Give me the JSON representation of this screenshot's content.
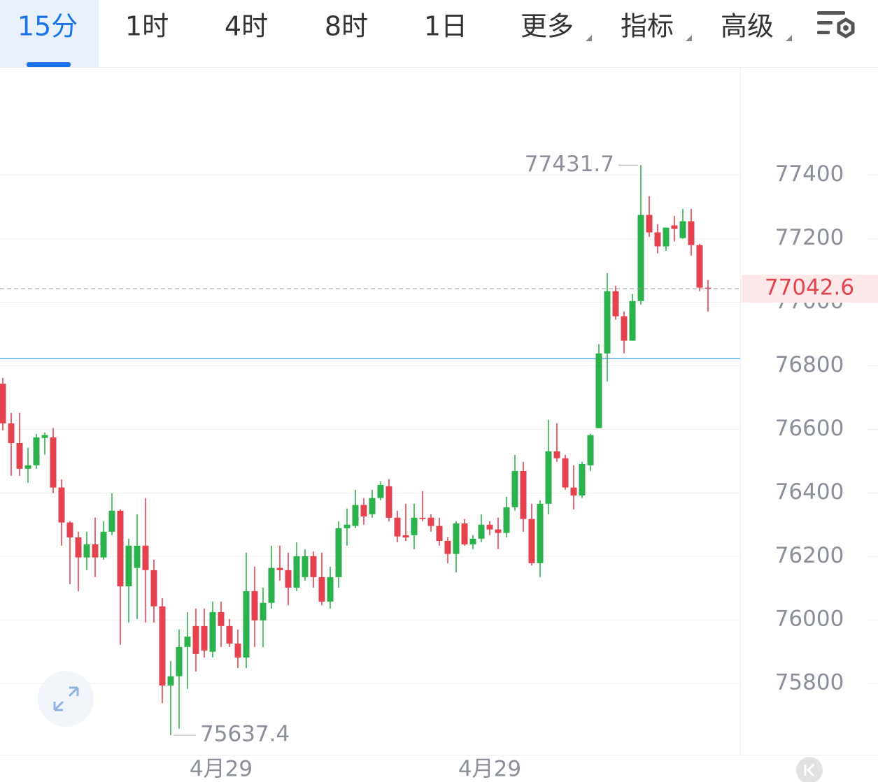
{
  "toolbar": {
    "tabs": [
      "15分",
      "1时",
      "4时",
      "8时",
      "1日",
      "更多",
      "指标",
      "高级"
    ],
    "active": 0
  },
  "chart_data": {
    "type": "candlestick",
    "categories": [
      null,
      null,
      null,
      null,
      null,
      null,
      null,
      null,
      null,
      null,
      null,
      null,
      null,
      null,
      null,
      null,
      null,
      null,
      null,
      null,
      null,
      null,
      null,
      null,
      null,
      null,
      "4月29",
      null,
      null,
      null,
      null,
      null,
      null,
      null,
      null,
      null,
      null,
      null,
      null,
      null,
      null,
      null,
      null,
      null,
      null,
      null,
      null,
      null,
      null,
      null,
      null,
      null,
      null,
      null,
      null,
      null,
      null,
      null,
      "4月29",
      null,
      null,
      null,
      null,
      null,
      null,
      null,
      null,
      null,
      null,
      null,
      null,
      null,
      null,
      null,
      null,
      null,
      null,
      null,
      null,
      null,
      null,
      null,
      null,
      null,
      null
    ],
    "open": [
      76744,
      76619,
      76557,
      76476,
      76487,
      76573,
      76575,
      76417,
      76307,
      76260,
      76197,
      76238,
      76197,
      76278,
      76344,
      76106,
      76164,
      76234,
      76157,
      76043,
      75794,
      75823,
      75915,
      75981,
      75981,
      75900,
      76025,
      75981,
      75926,
      75882,
      76091,
      75999,
      76054,
      76164,
      76157,
      76102,
      76135,
      76201,
      76135,
      76058,
      76135,
      76289,
      76296,
      76362,
      76333,
      76384,
      76421,
      76322,
      76267,
      76267,
      76322,
      76322,
      76296,
      76249,
      76208,
      76304,
      76238,
      76256,
      76300,
      76285,
      76274,
      76355,
      76469,
      76318,
      76179,
      76366,
      76531,
      76509,
      76417,
      76392,
      76487,
      76604,
      76839,
      77035,
      76956,
      76879,
      77004,
      77275,
      77220,
      77176,
      77242,
      77202,
      77255,
      77180,
      77046
    ],
    "high": [
      76762,
      76652,
      76652,
      76542,
      76586,
      76590,
      76604,
      76443,
      76311,
      76278,
      76278,
      76322,
      76311,
      76399,
      76348,
      76256,
      76333,
      76384,
      76190,
      76069,
      75871,
      75970,
      76025,
      76036,
      76036,
      76058,
      76058,
      76003,
      75970,
      76212,
      76168,
      76102,
      76234,
      76234,
      76212,
      76245,
      76223,
      76216,
      76212,
      76168,
      76311,
      76351,
      76410,
      76384,
      76410,
      76436,
      76443,
      76344,
      76366,
      76366,
      76406,
      76333,
      76322,
      76260,
      76311,
      76318,
      76267,
      76333,
      76311,
      76322,
      76388,
      76520,
      76498,
      76366,
      76377,
      76630,
      76619,
      76520,
      76487,
      76498,
      76586,
      76868,
      77092,
      77052,
      76971,
      77026,
      77431.7,
      77334,
      77246,
      77235,
      77272,
      77294,
      77294,
      77184,
      77070
    ],
    "low": [
      76597,
      76454,
      76454,
      76432,
      76476,
      76520,
      76399,
      76234,
      76113,
      76091,
      76157,
      76135,
      76190,
      76267,
      75922,
      75992,
      76003,
      75992,
      75992,
      75739,
      75637.4,
      75658,
      75783,
      75838,
      75882,
      75882,
      75915,
      75915,
      75849,
      75849,
      75915,
      75915,
      76036,
      76124,
      76047,
      76091,
      76124,
      76102,
      76047,
      76036,
      76102,
      76234,
      76289,
      76300,
      76322,
      76377,
      76311,
      76245,
      76249,
      76223,
      76311,
      76278,
      76234,
      76179,
      76150,
      76234,
      76223,
      76245,
      76267,
      76223,
      76260,
      76344,
      76278,
      76172,
      76135,
      76333,
      76498,
      76410,
      76348,
      76384,
      76469,
      76604,
      76751,
      76945,
      76839,
      76879,
      76993,
      77206,
      77154,
      77162,
      77191,
      77200,
      77147,
      77035,
      76971
    ],
    "close": [
      76619,
      76557,
      76476,
      76487,
      76575,
      76582,
      76417,
      76307,
      76260,
      76197,
      76238,
      76197,
      76278,
      76344,
      76106,
      76234,
      76234,
      76157,
      76043,
      75794,
      75823,
      75915,
      75948,
      75893,
      75904,
      76025,
      75981,
      75926,
      75882,
      76091,
      75999,
      76054,
      76164,
      76157,
      76102,
      76201,
      76201,
      76135,
      76058,
      76135,
      76289,
      76300,
      76362,
      76326,
      76384,
      76425,
      76322,
      76263,
      76260,
      76322,
      76318,
      76296,
      76249,
      76208,
      76304,
      76238,
      76256,
      76300,
      76285,
      76274,
      76355,
      76469,
      76318,
      76179,
      76366,
      76531,
      76509,
      76417,
      76392,
      76491,
      76582,
      76839,
      77035,
      76956,
      76879,
      77004,
      77275,
      77220,
      77176,
      77235,
      77231,
      77255,
      77180,
      77046,
      77042.6
    ],
    "up_color": "#2bb24c",
    "down_color": "#e5424f",
    "reference_line": {
      "value": 76823,
      "color": "#5aaedc"
    },
    "ylim": [
      75576,
      77738
    ],
    "yticks": [
      75800,
      76000,
      76200,
      76400,
      76600,
      76800,
      77000,
      77200,
      77400
    ],
    "grid": true
  }
}
